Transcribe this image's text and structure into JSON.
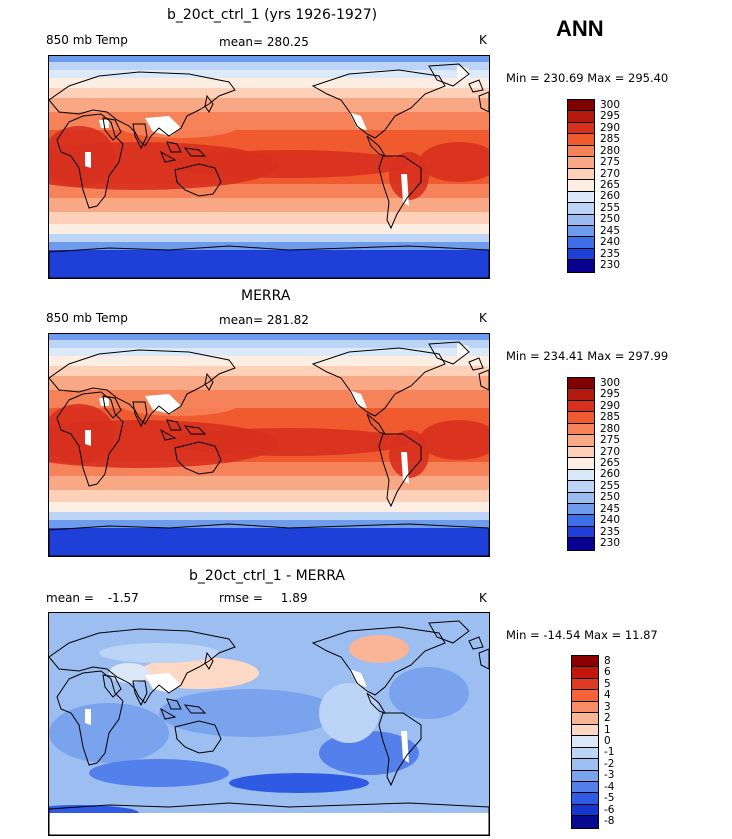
{
  "season": "ANN",
  "panels": [
    {
      "id": "model",
      "title": "b_20ct_ctrl_1 (yrs 1926-1927)",
      "variable": "850 mb Temp",
      "stat_label": "mean=",
      "stat_value": "280.25",
      "unit": "K",
      "min_label": "Min =",
      "min_value": "230.69",
      "max_label": "Max =",
      "max_value": "295.40",
      "palette": "abs",
      "colorbar_levels": [
        "300",
        "295",
        "290",
        "285",
        "280",
        "275",
        "270",
        "265",
        "260",
        "255",
        "250",
        "245",
        "240",
        "235",
        "230"
      ]
    },
    {
      "id": "obs",
      "title": "MERRA",
      "variable": "850 mb Temp",
      "stat_label": "mean=",
      "stat_value": "281.82",
      "unit": "K",
      "min_label": "Min =",
      "min_value": "234.41",
      "max_label": "Max =",
      "max_value": "297.99",
      "palette": "abs",
      "colorbar_levels": [
        "300",
        "295",
        "290",
        "285",
        "280",
        "275",
        "270",
        "265",
        "260",
        "255",
        "250",
        "245",
        "240",
        "235",
        "230"
      ]
    },
    {
      "id": "diff",
      "title": "b_20ct_ctrl_1 - MERRA",
      "variable": "mean =",
      "variable_value": "-1.57",
      "stat_label": "rmse =",
      "stat_value": "1.89",
      "unit": "K",
      "min_label": "Min =",
      "min_value": "-14.54",
      "max_label": "Max =",
      "max_value": "11.87",
      "palette": "diff",
      "colorbar_levels": [
        "8",
        "6",
        "5",
        "4",
        "3",
        "2",
        "1",
        "0",
        "-1",
        "-2",
        "-3",
        "-4",
        "-5",
        "-6",
        "-8"
      ]
    }
  ],
  "colors": {
    "abs": [
      "#7f0000",
      "#b41a0e",
      "#d7301f",
      "#ef5b2e",
      "#f6825a",
      "#f9a886",
      "#fdd0b7",
      "#fdeee3",
      "#dce9f9",
      "#bcd4f5",
      "#9bbcf0",
      "#6f9bec",
      "#3f6fe8",
      "#1e40d8",
      "#070090"
    ],
    "diff": [
      "#8b0000",
      "#c1170c",
      "#e03b22",
      "#f4633a",
      "#f78c66",
      "#fab496",
      "#fdd8c4",
      "#dce8f8",
      "#bcd4f5",
      "#9dbef1",
      "#7aa3ee",
      "#5380ea",
      "#2f5be4",
      "#1637cf",
      "#050a8e"
    ],
    "land_outline": "#000000",
    "missing": "#ffffff"
  }
}
